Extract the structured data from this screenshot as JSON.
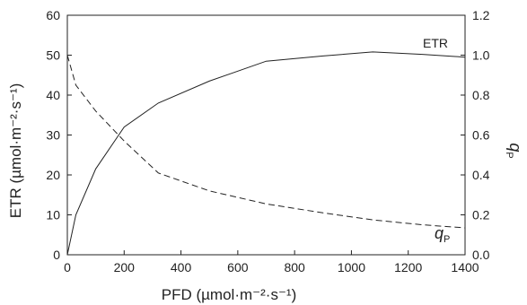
{
  "chart_data": {
    "type": "line",
    "title": "",
    "xlabel": "PFD (µmol·m⁻²·s⁻¹)",
    "ylabel_left": "ETR (µmol·m⁻²·s⁻¹)",
    "ylabel_right_main": "q",
    "ylabel_right_sub": "P",
    "xlim": [
      0,
      1400
    ],
    "ylim_left": [
      0,
      60
    ],
    "ylim_right": [
      0,
      1.2
    ],
    "x_ticks": [
      "0",
      "200",
      "400",
      "600",
      "800",
      "1000",
      "1200",
      "1400"
    ],
    "y_left_ticks": [
      "0",
      "10",
      "20",
      "30",
      "40",
      "50",
      "60"
    ],
    "y_right_ticks": [
      "0.0",
      "0.2",
      "0.4",
      "0.6",
      "0.8",
      "1.0",
      "1.2"
    ],
    "grid": false,
    "series": [
      {
        "name": "ETR",
        "axis": "left",
        "style": "solid",
        "label_main": "ETR",
        "points": [
          {
            "x": 0,
            "y": 0
          },
          {
            "x": 30,
            "y": 10
          },
          {
            "x": 100,
            "y": 21.5
          },
          {
            "x": 200,
            "y": 32
          },
          {
            "x": 320,
            "y": 38
          },
          {
            "x": 500,
            "y": 43.5
          },
          {
            "x": 700,
            "y": 48.5
          },
          {
            "x": 900,
            "y": 49.8
          },
          {
            "x": 1075,
            "y": 50.8
          },
          {
            "x": 1250,
            "y": 50.2
          },
          {
            "x": 1400,
            "y": 49.5
          }
        ]
      },
      {
        "name": "qP",
        "axis": "right",
        "style": "dashed",
        "label_main": "q",
        "label_sub": "P",
        "points": [
          {
            "x": 0,
            "y": 1.0
          },
          {
            "x": 30,
            "y": 0.85
          },
          {
            "x": 100,
            "y": 0.72
          },
          {
            "x": 200,
            "y": 0.57
          },
          {
            "x": 320,
            "y": 0.41
          },
          {
            "x": 500,
            "y": 0.32
          },
          {
            "x": 700,
            "y": 0.255
          },
          {
            "x": 900,
            "y": 0.21
          },
          {
            "x": 1075,
            "y": 0.175
          },
          {
            "x": 1250,
            "y": 0.15
          },
          {
            "x": 1400,
            "y": 0.135
          }
        ]
      }
    ]
  }
}
